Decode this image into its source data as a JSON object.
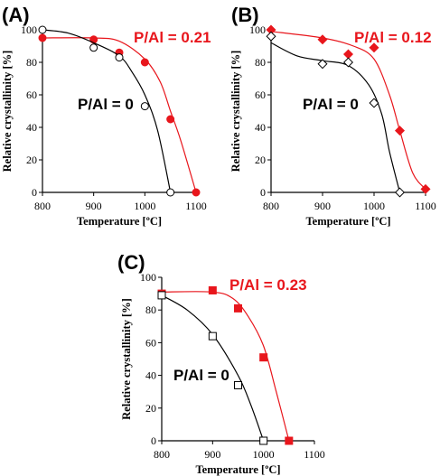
{
  "chart_data": [
    {
      "type": "line",
      "panel": "(A)",
      "xlabel": "Temperature [ºC]",
      "ylabel": "Relative crystallinity [%]",
      "xlim": [
        800,
        1100
      ],
      "ylim": [
        0,
        100
      ],
      "xticks": [
        800,
        900,
        1000,
        1100
      ],
      "yticks": [
        0,
        20,
        40,
        60,
        80,
        100
      ],
      "series": [
        {
          "name": "P/Al = 0.21",
          "color": "#e8161c",
          "marker": "filled-circle",
          "x": [
            800,
            900,
            950,
            1000,
            1050,
            1100
          ],
          "y": [
            95,
            94,
            86,
            80,
            45,
            0
          ],
          "curve": [
            [
              800,
              95
            ],
            [
              900,
              95
            ],
            [
              950,
              93
            ],
            [
              1000,
              82
            ],
            [
              1030,
              68
            ],
            [
              1050,
              50
            ],
            [
              1070,
              32
            ],
            [
              1100,
              0
            ]
          ]
        },
        {
          "name": "P/Al = 0",
          "color": "#000000",
          "marker": "open-circle",
          "x": [
            800,
            900,
            950,
            1000,
            1050
          ],
          "y": [
            100,
            89,
            83,
            53,
            0
          ],
          "curve": [
            [
              800,
              100
            ],
            [
              850,
              98
            ],
            [
              900,
              92
            ],
            [
              950,
              84
            ],
            [
              975,
              74
            ],
            [
              1000,
              60
            ],
            [
              1025,
              38
            ],
            [
              1050,
              0
            ]
          ]
        }
      ]
    },
    {
      "type": "line",
      "panel": "(B)",
      "xlabel": "Temperature [ºC]",
      "ylabel": "Relative crystallinity [%]",
      "xlim": [
        800,
        1100
      ],
      "ylim": [
        0,
        100
      ],
      "xticks": [
        800,
        900,
        1000,
        1100
      ],
      "yticks": [
        0,
        20,
        40,
        60,
        80,
        100
      ],
      "series": [
        {
          "name": "P/Al = 0.12",
          "color": "#e8161c",
          "marker": "filled-diamond",
          "x": [
            800,
            900,
            950,
            1000,
            1050,
            1100
          ],
          "y": [
            100,
            94,
            85,
            89,
            38,
            2
          ],
          "curve": [
            [
              800,
              99
            ],
            [
              900,
              95
            ],
            [
              960,
              90
            ],
            [
              1000,
              82
            ],
            [
              1030,
              60
            ],
            [
              1050,
              38
            ],
            [
              1075,
              12
            ],
            [
              1100,
              2
            ]
          ]
        },
        {
          "name": "P/Al = 0",
          "color": "#000000",
          "marker": "open-diamond",
          "x": [
            800,
            900,
            950,
            1000,
            1050
          ],
          "y": [
            96,
            79,
            80,
            55,
            0
          ],
          "curve": [
            [
              800,
              92
            ],
            [
              850,
              84
            ],
            [
              900,
              81
            ],
            [
              950,
              78
            ],
            [
              990,
              66
            ],
            [
              1015,
              48
            ],
            [
              1030,
              25
            ],
            [
              1050,
              0
            ]
          ]
        }
      ]
    },
    {
      "type": "line",
      "panel": "(C)",
      "xlabel": "Temperature [ºC]",
      "ylabel": "Relative crystallinity [%]",
      "xlim": [
        800,
        1100
      ],
      "ylim": [
        0,
        100
      ],
      "xticks": [
        800,
        900,
        1000,
        1100
      ],
      "yticks": [
        0,
        20,
        40,
        60,
        80,
        100
      ],
      "series": [
        {
          "name": "P/Al = 0.23",
          "color": "#e8161c",
          "marker": "filled-square",
          "x": [
            800,
            900,
            950,
            1000,
            1050
          ],
          "y": [
            90,
            92,
            81,
            51,
            0
          ],
          "curve": [
            [
              800,
              91
            ],
            [
              900,
              91
            ],
            [
              940,
              87
            ],
            [
              970,
              76
            ],
            [
              1000,
              58
            ],
            [
              1025,
              30
            ],
            [
              1050,
              0
            ]
          ]
        },
        {
          "name": "P/Al = 0",
          "color": "#000000",
          "marker": "open-square",
          "x": [
            800,
            900,
            950,
            1000
          ],
          "y": [
            89,
            64,
            34,
            0
          ],
          "curve": [
            [
              800,
              89
            ],
            [
              850,
              80
            ],
            [
              900,
              65
            ],
            [
              950,
              40
            ],
            [
              975,
              22
            ],
            [
              1000,
              0
            ]
          ]
        }
      ]
    }
  ]
}
